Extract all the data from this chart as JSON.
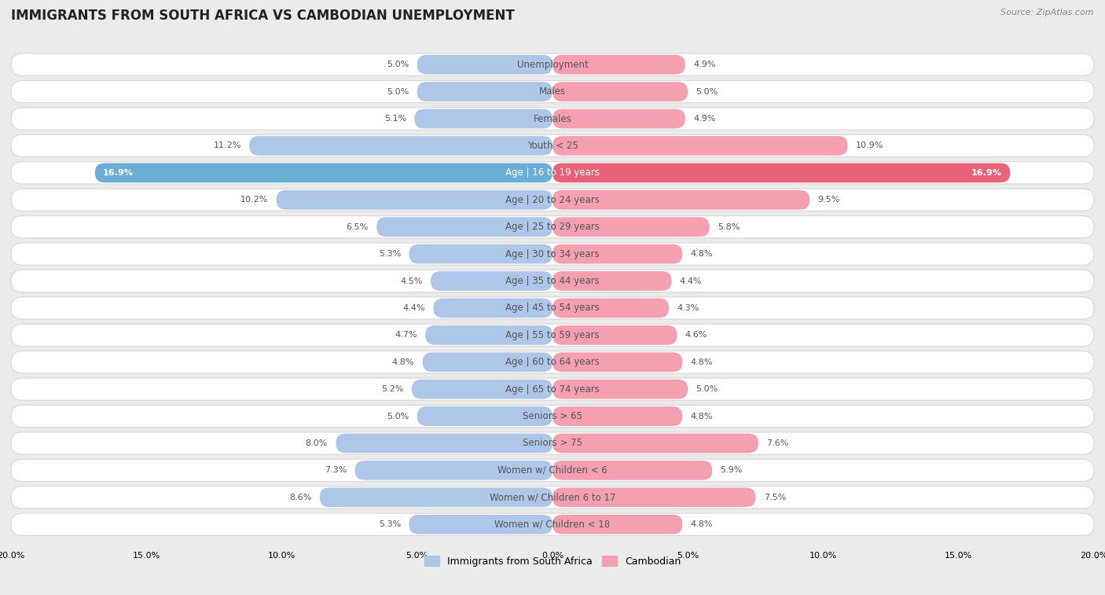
{
  "title": "IMMIGRANTS FROM SOUTH AFRICA VS CAMBODIAN UNEMPLOYMENT",
  "source": "Source: ZipAtlas.com",
  "categories": [
    "Unemployment",
    "Males",
    "Females",
    "Youth < 25",
    "Age | 16 to 19 years",
    "Age | 20 to 24 years",
    "Age | 25 to 29 years",
    "Age | 30 to 34 years",
    "Age | 35 to 44 years",
    "Age | 45 to 54 years",
    "Age | 55 to 59 years",
    "Age | 60 to 64 years",
    "Age | 65 to 74 years",
    "Seniors > 65",
    "Seniors > 75",
    "Women w/ Children < 6",
    "Women w/ Children 6 to 17",
    "Women w/ Children < 18"
  ],
  "left_values": [
    5.0,
    5.0,
    5.1,
    11.2,
    16.9,
    10.2,
    6.5,
    5.3,
    4.5,
    4.4,
    4.7,
    4.8,
    5.2,
    5.0,
    8.0,
    7.3,
    8.6,
    5.3
  ],
  "right_values": [
    4.9,
    5.0,
    4.9,
    10.9,
    16.9,
    9.5,
    5.8,
    4.8,
    4.4,
    4.3,
    4.6,
    4.8,
    5.0,
    4.8,
    7.6,
    5.9,
    7.5,
    4.8
  ],
  "left_color": "#aec6e8",
  "right_color": "#f4a0b0",
  "highlight_left_color": "#6aaed6",
  "highlight_right_color": "#e8637a",
  "highlight_index": 4,
  "xlim": 20.0,
  "legend_left": "Immigrants from South Africa",
  "legend_right": "Cambodian",
  "background_color": "#ebebeb",
  "row_bg_color": "#ffffff",
  "row_border_color": "#d8d8d8",
  "title_fontsize": 12,
  "label_fontsize": 8.5,
  "value_fontsize": 8,
  "source_fontsize": 8,
  "text_color": "#555555",
  "highlight_text_color": "#ffffff"
}
